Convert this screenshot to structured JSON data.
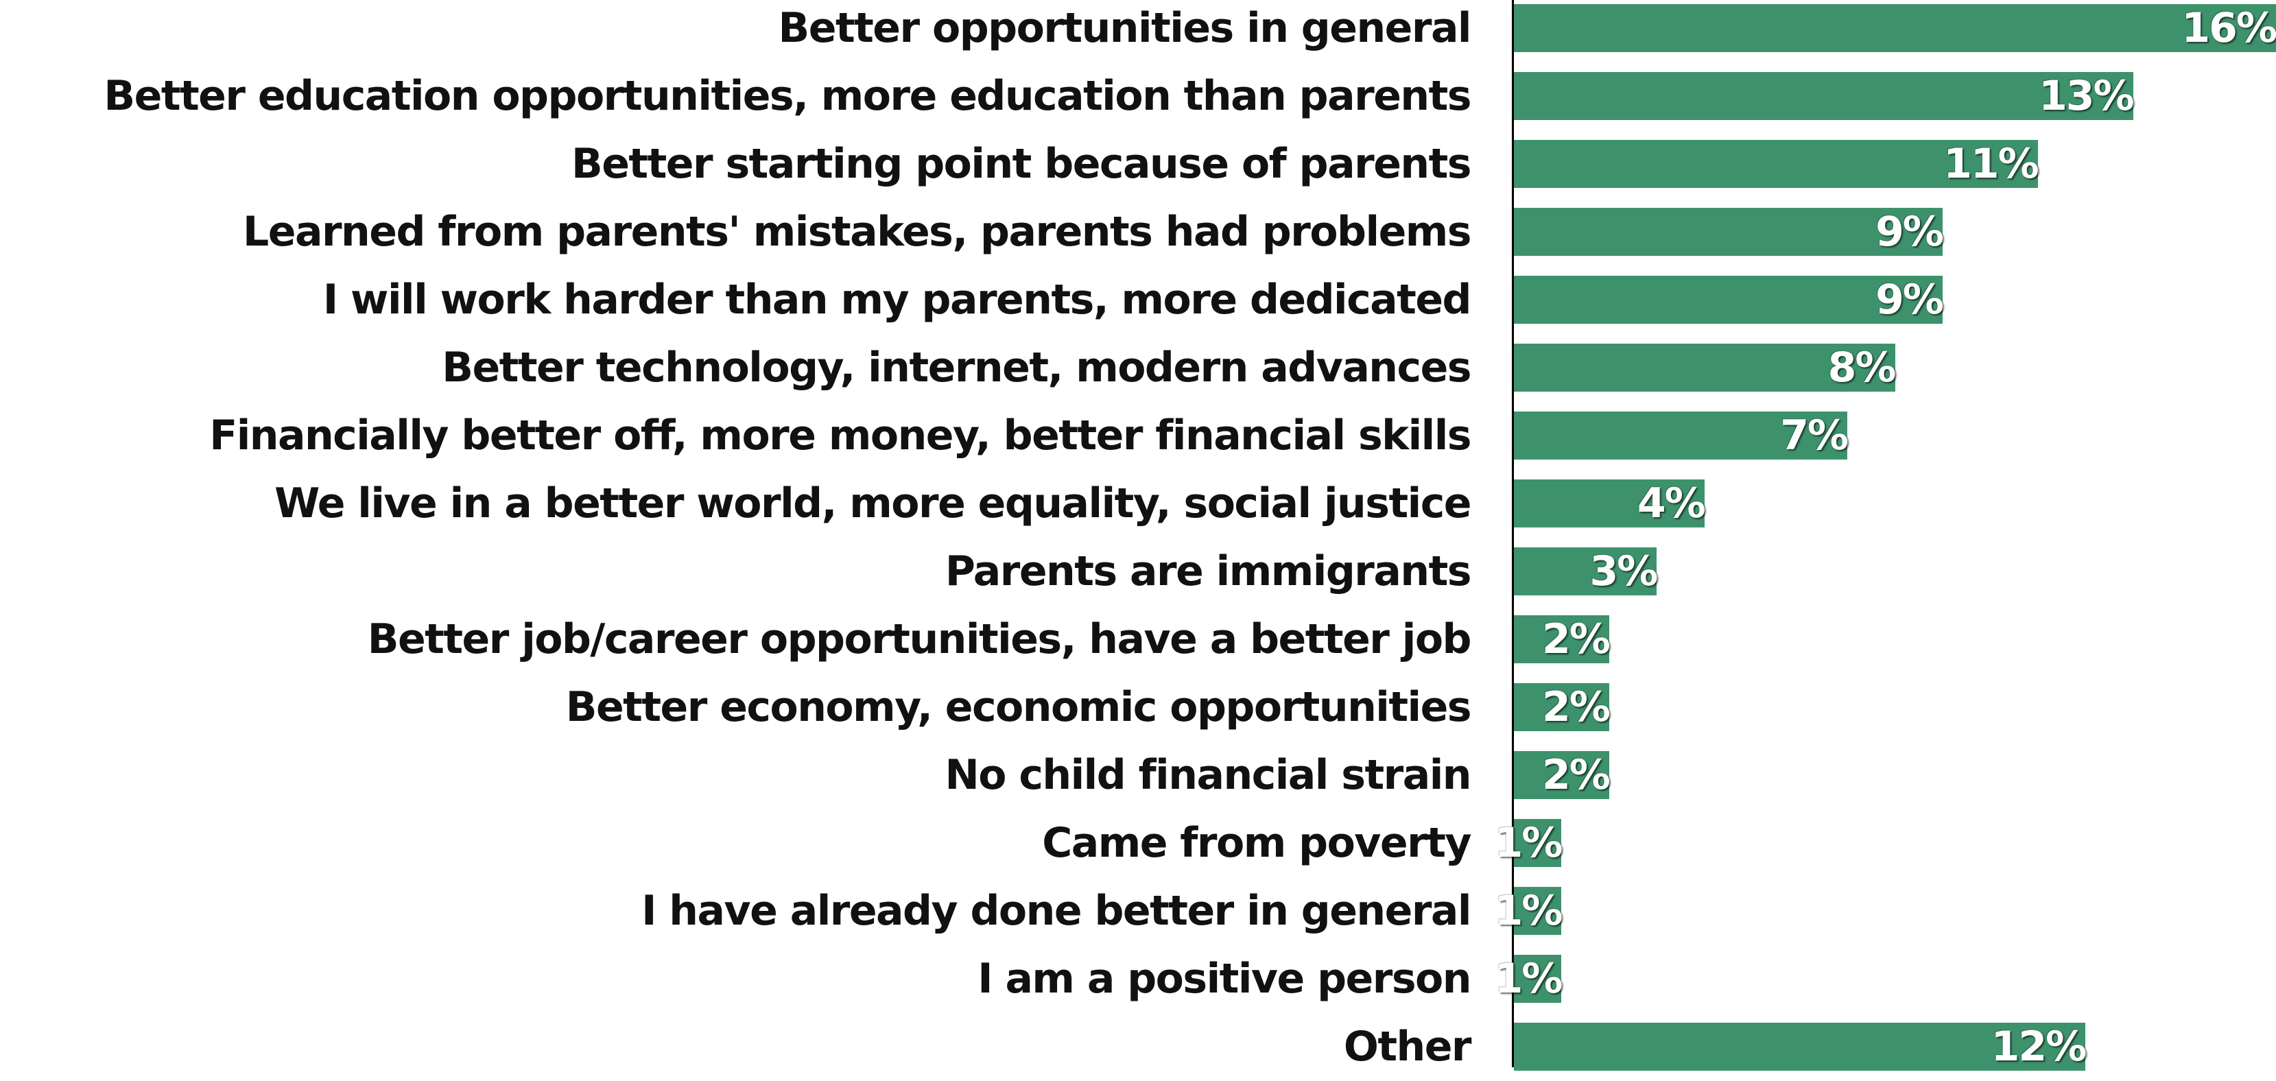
{
  "chart_data": {
    "type": "bar",
    "orientation": "horizontal",
    "categories": [
      "Better opportunities in general",
      "Better education opportunities, more education than parents",
      "Better starting point because of parents",
      "Learned from parents' mistakes, parents had problems",
      "I will work harder than my parents, more dedicated",
      "Better technology, internet, modern advances",
      "Financially better off, more money, better financial skills",
      "We live in a better world, more equality, social justice",
      "Parents are immigrants",
      "Better job/career opportunities, have a better job",
      "Better economy, economic opportunities",
      "No child financial strain",
      "Came from poverty",
      "I have already done better in general",
      "I am a positive person",
      "Other"
    ],
    "values": [
      16,
      13,
      11,
      9,
      9,
      8,
      7,
      4,
      3,
      2,
      2,
      2,
      1,
      1,
      1,
      12
    ],
    "value_labels": [
      "16%",
      "13%",
      "11%",
      "9%",
      "9%",
      "8%",
      "7%",
      "4%",
      "3%",
      "2%",
      "2%",
      "2%",
      "1%",
      "1%",
      "1%",
      "12%"
    ],
    "unit": "%",
    "bar_color": "#3d926c",
    "xlim": [
      0,
      16
    ],
    "grid": false,
    "legend": "none"
  }
}
